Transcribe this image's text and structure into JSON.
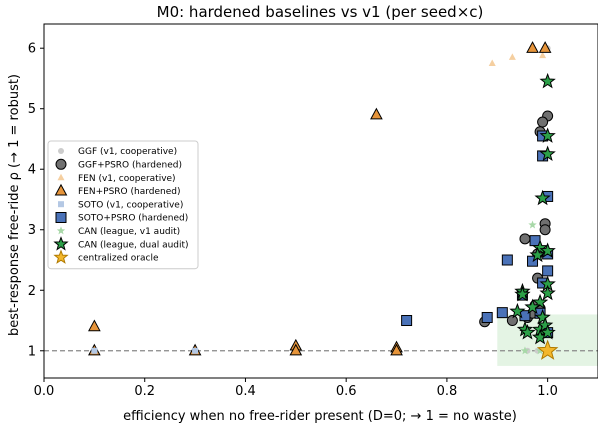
{
  "chart_data": {
    "type": "scatter",
    "title": "M0: hardened baselines vs v1 (per seed×c)",
    "xlabel": "efficiency when no free-rider present  (D=0; → 1 = no waste)",
    "ylabel": "best-response free-ride ρ  (→ 1 = robust)",
    "xlim": [
      0.0,
      1.1
    ],
    "ylim": [
      0.55,
      6.4
    ],
    "x_ticks": [
      0.0,
      0.2,
      0.4,
      0.6,
      0.8,
      1.0
    ],
    "x_tick_labels": [
      "0.0",
      "0.2",
      "0.4",
      "0.6",
      "0.8",
      "1.0"
    ],
    "y_ticks": [
      1,
      2,
      3,
      4,
      5,
      6
    ],
    "y_tick_labels": [
      "1",
      "2",
      "3",
      "4",
      "5",
      "6"
    ],
    "grid": false,
    "legend_position": "center-left",
    "reference_line_y": 1.0,
    "target_region": {
      "x": [
        0.9,
        1.1
      ],
      "y": [
        0.75,
        1.6
      ],
      "color": "#d8efd8"
    },
    "series": [
      {
        "name": "GGF (v1, cooperative)",
        "marker": "circle",
        "color": "#cccccc",
        "edge": "none",
        "size": 6,
        "points": [
          [
            1.0,
            6.0
          ],
          [
            0.96,
            1.0
          ],
          [
            0.98,
            1.0
          ],
          [
            1.0,
            1.0
          ]
        ]
      },
      {
        "name": "GGF+PSRO (hardened)",
        "marker": "circle",
        "color": "#707070",
        "edge": "#000000",
        "size": 10,
        "points": [
          [
            1.0,
            4.88
          ],
          [
            0.99,
            4.78
          ],
          [
            0.985,
            4.62
          ],
          [
            0.995,
            4.55
          ],
          [
            0.995,
            3.1
          ],
          [
            0.995,
            3.0
          ],
          [
            0.955,
            2.85
          ],
          [
            0.98,
            2.6
          ],
          [
            0.98,
            2.2
          ],
          [
            0.975,
            1.75
          ],
          [
            0.985,
            1.7
          ],
          [
            0.96,
            1.55
          ],
          [
            0.93,
            1.5
          ],
          [
            0.875,
            1.48
          ],
          [
            0.97,
            1.62
          ]
        ]
      },
      {
        "name": "FEN (v1, cooperative)",
        "marker": "triangle",
        "color": "#f5cfa0",
        "edge": "none",
        "size": 7,
        "points": [
          [
            0.89,
            5.75
          ],
          [
            0.93,
            5.85
          ],
          [
            0.99,
            5.88
          ]
        ]
      },
      {
        "name": "FEN+PSRO (hardened)",
        "marker": "triangle",
        "color": "#e6943a",
        "edge": "#000000",
        "size": 11,
        "points": [
          [
            0.97,
            6.0
          ],
          [
            0.995,
            6.0
          ],
          [
            0.66,
            4.9
          ],
          [
            0.1,
            1.4
          ],
          [
            0.1,
            1.0
          ],
          [
            0.3,
            1.0
          ],
          [
            0.5,
            1.08
          ],
          [
            0.5,
            1.0
          ],
          [
            0.7,
            1.05
          ],
          [
            0.7,
            1.0
          ]
        ]
      },
      {
        "name": "SOTO (v1, cooperative)",
        "marker": "square",
        "color": "#b4c8e4",
        "edge": "none",
        "size": 6,
        "points": [
          [
            0.1,
            1.0
          ],
          [
            0.3,
            1.0
          ]
        ]
      },
      {
        "name": "SOTO+PSRO (hardened)",
        "marker": "square",
        "color": "#4a72b8",
        "edge": "#000000",
        "size": 10,
        "points": [
          [
            0.99,
            4.55
          ],
          [
            0.99,
            4.22
          ],
          [
            1.0,
            3.55
          ],
          [
            0.975,
            2.82
          ],
          [
            1.0,
            2.6
          ],
          [
            0.92,
            2.5
          ],
          [
            0.97,
            2.48
          ],
          [
            1.0,
            2.32
          ],
          [
            0.99,
            2.12
          ],
          [
            0.95,
            1.92
          ],
          [
            0.91,
            1.63
          ],
          [
            0.88,
            1.55
          ],
          [
            0.72,
            1.5
          ],
          [
            0.985,
            1.62
          ],
          [
            1.0,
            1.3
          ],
          [
            0.955,
            1.58
          ]
        ]
      },
      {
        "name": "CAN (league, v1 audit)",
        "marker": "star",
        "color": "#a8d8a8",
        "edge": "none",
        "size": 8,
        "points": [
          [
            0.97,
            3.08
          ],
          [
            0.955,
            1.0
          ],
          [
            0.985,
            1.0
          ]
        ]
      },
      {
        "name": "CAN (league, dual audit)",
        "marker": "star",
        "color": "#2ca048",
        "edge": "#000000",
        "size": 13,
        "points": [
          [
            1.0,
            5.45
          ],
          [
            1.0,
            4.55
          ],
          [
            1.0,
            4.25
          ],
          [
            0.99,
            3.52
          ],
          [
            0.985,
            2.7
          ],
          [
            1.0,
            2.65
          ],
          [
            0.98,
            2.58
          ],
          [
            1.0,
            2.1
          ],
          [
            0.95,
            1.98
          ],
          [
            0.95,
            1.93
          ],
          [
            1.0,
            1.95
          ],
          [
            0.985,
            1.8
          ],
          [
            0.97,
            1.72
          ],
          [
            0.94,
            1.65
          ],
          [
            0.99,
            1.55
          ],
          [
            0.955,
            1.35
          ],
          [
            0.985,
            1.35
          ],
          [
            0.96,
            1.3
          ],
          [
            0.985,
            1.22
          ],
          [
            0.995,
            1.42
          ],
          [
            1.0,
            1.3
          ]
        ]
      },
      {
        "name": "centralized oracle",
        "marker": "star",
        "color": "#f3b72c",
        "edge": "#b07a00",
        "size": 18,
        "points": [
          [
            1.0,
            1.0
          ]
        ]
      }
    ]
  }
}
